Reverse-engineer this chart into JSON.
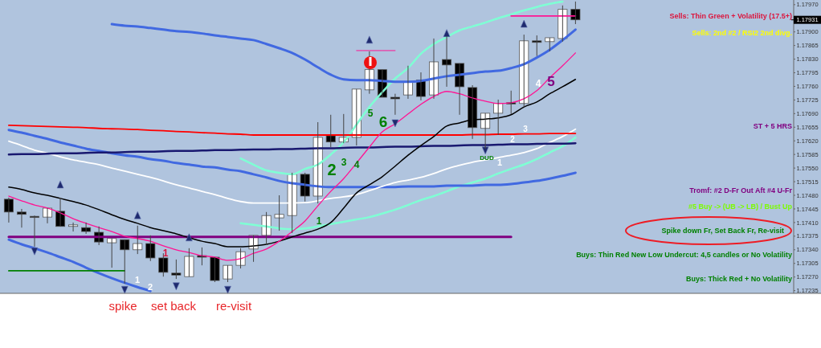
{
  "chart_data": {
    "type": "candlestick",
    "tick_labels": "y",
    "categories": [
      null,
      null,
      null,
      null,
      null,
      null,
      null,
      null,
      null,
      null,
      null,
      null,
      null,
      null,
      null,
      null,
      null,
      null,
      null,
      null,
      null,
      null,
      null,
      null,
      null,
      null,
      null,
      null,
      null,
      null,
      null,
      null,
      null,
      null,
      null,
      null,
      null,
      null,
      null,
      null,
      null,
      null,
      null,
      null,
      null
    ],
    "ohlc": [
      [
        1.1747,
        1.17474,
        1.1741,
        1.17437
      ],
      [
        1.17437,
        1.17445,
        1.17397,
        1.17431
      ],
      [
        1.17426,
        1.17428,
        1.17348,
        1.17424
      ],
      [
        1.17424,
        1.17447,
        1.17408,
        1.17447
      ],
      [
        1.17439,
        1.17474,
        1.174,
        1.174
      ],
      [
        1.174,
        1.1741,
        1.17387,
        1.17404
      ],
      [
        1.17397,
        1.1741,
        1.17381,
        1.17387
      ],
      [
        1.17385,
        1.174,
        1.17352,
        1.1736
      ],
      [
        1.17358,
        1.17369,
        1.17294,
        1.17369
      ],
      [
        1.17366,
        1.17366,
        1.17253,
        1.1734
      ],
      [
        1.1734,
        1.17402,
        1.17329,
        1.17356
      ],
      [
        1.17356,
        1.17377,
        1.17311,
        1.17319
      ],
      [
        1.17319,
        1.17331,
        1.17271,
        1.17282
      ],
      [
        1.1728,
        1.17315,
        1.17265,
        1.17275
      ],
      [
        1.17271,
        1.17344,
        1.17271,
        1.17323
      ],
      [
        1.17325,
        1.17346,
        1.173,
        1.17321
      ],
      [
        1.17321,
        1.17321,
        1.17257,
        1.17261
      ],
      [
        1.17265,
        1.173,
        1.17257,
        1.173
      ],
      [
        1.173,
        1.17344,
        1.17292,
        1.17335
      ],
      [
        1.17342,
        1.17377,
        1.17309,
        1.17377
      ],
      [
        1.17377,
        1.17437,
        1.17352,
        1.17428
      ],
      [
        1.17422,
        1.1748,
        1.17389,
        1.17431
      ],
      [
        1.17428,
        1.17538,
        1.17383,
        1.17534
      ],
      [
        1.17534,
        1.17538,
        1.17464,
        1.17478
      ],
      [
        1.17478,
        1.17668,
        1.17459,
        1.17629
      ],
      [
        1.17633,
        1.17687,
        1.17604,
        1.17617
      ],
      [
        1.17617,
        1.17689,
        1.17614,
        1.17629
      ],
      [
        1.17629,
        1.17753,
        1.17608,
        1.17753
      ],
      [
        1.17751,
        1.1785,
        1.17741,
        1.17803
      ],
      [
        1.17803,
        1.17803,
        1.17732,
        1.17732
      ],
      [
        1.17732,
        1.17741,
        1.17687,
        1.17728
      ],
      [
        1.17738,
        1.17813,
        1.17728,
        1.17772
      ],
      [
        1.17776,
        1.17796,
        1.17724,
        1.17734
      ],
      [
        1.17738,
        1.17883,
        1.17728,
        1.17823
      ],
      [
        1.17829,
        1.17889,
        1.17759,
        1.17815
      ],
      [
        1.17819,
        1.17819,
        1.17687,
        1.17759
      ],
      [
        1.17757,
        1.17763,
        1.17625,
        1.17654
      ],
      [
        1.17652,
        1.17691,
        1.176,
        1.17691
      ],
      [
        1.17691,
        1.17726,
        1.17635,
        1.17716
      ],
      [
        1.17718,
        1.17749,
        1.17689,
        1.17716
      ],
      [
        1.17716,
        1.17893,
        1.17707,
        1.17877
      ],
      [
        1.17877,
        1.17891,
        1.17838,
        1.17873
      ],
      [
        1.17875,
        1.17885,
        1.1785,
        1.17885
      ],
      [
        1.17883,
        1.17968,
        1.17875,
        1.17958
      ],
      [
        1.17958,
        1.17978,
        1.1792,
        1.17931
      ]
    ],
    "series": [
      {
        "type": "line",
        "color": "#7fffd4",
        "values": [
          null,
          null,
          null,
          null,
          null,
          null,
          null,
          null,
          null,
          null,
          null,
          null,
          null,
          null,
          null,
          null,
          null,
          null,
          1.17575,
          1.17559,
          1.17544,
          1.17538,
          1.17534,
          1.17548,
          1.17559,
          1.17585,
          1.17616,
          1.17662,
          1.17707,
          1.17745,
          1.1778,
          1.17807,
          1.17844,
          1.17869,
          1.17887,
          1.17904,
          1.17914,
          1.17924,
          1.17935,
          1.17945,
          1.17955,
          1.17964,
          1.17972,
          1.17978,
          null
        ]
      },
      {
        "type": "line",
        "color": "#7fffd4",
        "values": [
          null,
          null,
          null,
          null,
          null,
          null,
          null,
          null,
          null,
          null,
          null,
          null,
          null,
          null,
          null,
          null,
          null,
          null,
          1.17408,
          1.17404,
          1.174,
          1.17395,
          1.17393,
          1.17395,
          1.174,
          1.17406,
          1.17412,
          1.17418,
          1.17424,
          1.17433,
          1.17443,
          1.17455,
          1.17468,
          1.17478,
          1.1749,
          1.17503,
          1.17513,
          1.17523,
          1.17536,
          1.17548,
          1.17559,
          1.17573,
          1.1759,
          1.17606,
          1.17629
        ]
      },
      {
        "type": "line",
        "color": "#4169e1",
        "values": [
          null,
          null,
          null,
          null,
          null,
          null,
          null,
          null,
          1.1792,
          1.17916,
          1.17914,
          1.1791,
          1.17906,
          1.17902,
          1.179,
          1.17896,
          1.17891,
          1.17887,
          1.17883,
          1.17879,
          1.17869,
          1.17858,
          1.17846,
          1.17829,
          1.17809,
          1.1779,
          1.17778,
          1.17776,
          1.17776,
          1.17774,
          1.17772,
          1.17772,
          1.17774,
          1.1778,
          1.17786,
          1.1779,
          1.17794,
          1.17798,
          1.178,
          1.17807,
          1.17817,
          1.17834,
          1.17854,
          1.17879,
          1.17906
        ]
      },
      {
        "type": "line",
        "color": "#4169e1",
        "values": [
          1.17648,
          1.17641,
          1.17633,
          1.17625,
          1.17616,
          1.17608,
          1.176,
          1.17594,
          1.17588,
          1.17583,
          1.17579,
          1.17573,
          1.17569,
          1.17563,
          1.17559,
          1.17554,
          1.17552,
          1.17546,
          1.17542,
          1.17534,
          1.17526,
          1.17517,
          1.17511,
          1.17507,
          1.17503,
          1.17501,
          1.17501,
          1.17501,
          1.17501,
          1.17501,
          1.17501,
          1.17503,
          1.17503,
          1.17503,
          1.17505,
          1.17505,
          1.17505,
          1.17507,
          1.17507,
          1.17509,
          1.17513,
          1.17517,
          1.17523,
          1.1753,
          1.17538
        ]
      },
      {
        "type": "line",
        "color": "#4169e1",
        "values": [
          1.17366,
          1.17354,
          1.17344,
          1.17333,
          1.17321,
          1.17309,
          1.17294,
          1.1728,
          1.17267,
          1.17255,
          1.17244,
          1.17234,
          null,
          null,
          null,
          null,
          null,
          null,
          null,
          null,
          null,
          null,
          null,
          null,
          null,
          null,
          null,
          null,
          null,
          null,
          null,
          null,
          null,
          null,
          null,
          null,
          null,
          null,
          null,
          null,
          null,
          null,
          null,
          null,
          null
        ]
      },
      {
        "type": "line",
        "color": "#ffffff",
        "values": [
          1.17619,
          1.17608,
          1.17596,
          1.17588,
          1.17579,
          1.17571,
          1.17565,
          1.17559,
          1.1755,
          1.17542,
          1.17534,
          1.17526,
          1.17517,
          1.17507,
          1.17499,
          1.1749,
          1.17482,
          1.17472,
          1.17464,
          1.1746,
          1.1746,
          1.1746,
          1.1746,
          1.17461,
          1.17466,
          1.17472,
          1.17476,
          1.17482,
          1.17492,
          1.17503,
          1.17513,
          1.17519,
          1.17526,
          1.17536,
          1.17548,
          1.17557,
          1.17565,
          1.17571,
          1.17577,
          1.17583,
          1.1759,
          1.176,
          1.17616,
          1.17631,
          1.1765
        ]
      },
      {
        "type": "line",
        "color": "#191970",
        "values": [
          1.17585,
          1.17586,
          1.17586,
          1.17587,
          1.17588,
          1.17588,
          1.17589,
          1.1759,
          1.1759,
          1.17591,
          1.17592,
          1.17592,
          1.17593,
          1.17594,
          1.17594,
          1.17595,
          1.17596,
          1.17596,
          1.17597,
          1.17598,
          1.17598,
          1.17599,
          1.17599,
          1.176,
          1.17601,
          1.17601,
          1.17602,
          1.17603,
          1.17603,
          1.17604,
          1.17605,
          1.17605,
          1.17606,
          1.17607,
          1.17607,
          1.17608,
          1.17609,
          1.17609,
          1.1761,
          1.17611,
          1.17611,
          1.17612,
          1.17613,
          1.17613,
          1.17614
        ]
      },
      {
        "type": "line",
        "color": "#ff0000",
        "values": [
          1.1766,
          1.17659,
          1.17658,
          1.17657,
          1.17656,
          1.17655,
          1.17654,
          1.17652,
          1.17651,
          1.1765,
          1.17649,
          1.17647,
          1.17646,
          1.17644,
          1.17643,
          1.17641,
          1.1764,
          1.17638,
          1.17637,
          1.17635,
          1.17635,
          1.17635,
          1.17635,
          1.17635,
          1.17635,
          1.17635,
          1.17635,
          1.17635,
          1.17635,
          1.17635,
          1.17635,
          1.17635,
          1.17635,
          1.17635,
          1.17635,
          1.17635,
          1.17636,
          1.17636,
          1.17637,
          1.17637,
          1.17638,
          1.17638,
          1.17639,
          1.17639,
          1.17639
        ]
      },
      {
        "type": "line",
        "color": "#800080",
        "values": [
          1.17373,
          1.17373,
          1.17373,
          1.17373,
          1.17373,
          1.17373,
          1.17373,
          1.17373,
          1.17373,
          1.17373,
          1.17373,
          1.17373,
          1.17373,
          1.17373,
          1.17373,
          1.17373,
          1.17373,
          1.17373,
          1.17373,
          1.17373,
          1.17373,
          1.17373,
          1.17373,
          1.17373,
          1.17373,
          1.17373,
          1.17373,
          1.17373,
          1.17373,
          1.17373,
          1.17373,
          1.17373,
          1.17373,
          1.17373,
          1.17373,
          1.17373,
          1.17373,
          1.17373,
          1.17373,
          1.17373,
          null,
          null,
          null,
          null,
          null
        ]
      },
      {
        "type": "line",
        "color": "#008000",
        "values": [
          1.17286,
          1.17286,
          1.17286,
          1.17286,
          1.17286,
          1.17286,
          1.17286,
          1.17286,
          1.17286,
          1.17286,
          null,
          null,
          null,
          null,
          null,
          null,
          null,
          null,
          null,
          null,
          null,
          null,
          null,
          null,
          null,
          null,
          null,
          null,
          null,
          null,
          null,
          null,
          null,
          null,
          null,
          null,
          null,
          null,
          null,
          null,
          null,
          null,
          null,
          null,
          null
        ]
      },
      {
        "type": "line",
        "color": "#ff1493",
        "values": [
          null,
          null,
          null,
          null,
          null,
          null,
          null,
          null,
          null,
          null,
          null,
          null,
          null,
          null,
          null,
          null,
          null,
          null,
          null,
          null,
          null,
          null,
          null,
          null,
          null,
          null,
          null,
          null,
          null,
          null,
          null,
          null,
          null,
          null,
          null,
          null,
          null,
          null,
          null,
          1.17941,
          1.17941,
          1.17941,
          1.17941,
          1.17941,
          1.17941
        ]
      },
      {
        "type": "line",
        "color": "#ff1493",
        "values": [
          null,
          null,
          null,
          null,
          null,
          null,
          null,
          null,
          null,
          null,
          null,
          null,
          null,
          null,
          null,
          null,
          null,
          null,
          null,
          null,
          null,
          null,
          null,
          null,
          null,
          null,
          null,
          1.17852,
          1.17852,
          1.17852,
          1.17852,
          null,
          null,
          null,
          null,
          null,
          null,
          null,
          null,
          null,
          null,
          null,
          null,
          null,
          null
        ]
      },
      {
        "type": "line",
        "color": "#000000",
        "values": [
          1.17501,
          1.17495,
          1.17486,
          1.1748,
          1.17472,
          1.17464,
          1.17455,
          1.17443,
          1.1743,
          1.17418,
          1.17408,
          1.17397,
          1.17389,
          1.17381,
          1.17371,
          1.17362,
          1.17356,
          1.17348,
          1.17348,
          1.1735,
          1.17354,
          1.17362,
          1.17373,
          1.17383,
          1.17393,
          1.1741,
          1.17447,
          1.17486,
          1.17507,
          1.17528,
          1.17555,
          1.17583,
          1.17608,
          1.17631,
          1.17658,
          1.17666,
          1.17674,
          1.17676,
          1.17679,
          1.17687,
          1.17707,
          1.1772,
          1.17741,
          1.17759,
          1.17778
        ]
      },
      {
        "type": "line",
        "color": "#ff1493",
        "values": [
          1.17478,
          1.17466,
          1.17455,
          1.17447,
          1.17435,
          1.1742,
          1.17408,
          1.17397,
          1.17387,
          1.17375,
          1.17369,
          1.17362,
          1.1735,
          1.1734,
          1.17333,
          1.17325,
          1.17321,
          1.17313,
          1.17317,
          1.17331,
          1.17342,
          1.17362,
          1.17387,
          1.17414,
          1.17453,
          1.1749,
          1.17523,
          1.17563,
          1.17604,
          1.17643,
          1.17664,
          1.17689,
          1.17714,
          1.17734,
          1.17747,
          1.17741,
          1.1773,
          1.17722,
          1.17716,
          1.17718,
          1.17728,
          1.17749,
          1.17782,
          1.17813,
          1.17846
        ]
      },
      {
        "type": "scatter",
        "color": "#1e2a6e",
        "marker": "triangle",
        "values": [
          null,
          null,
          1.17337,
          null,
          1.17507,
          null,
          null,
          null,
          null,
          1.17238,
          1.17428,
          null,
          null,
          1.17247,
          1.17371,
          null,
          null,
          1.17238,
          null,
          null,
          null,
          null,
          null,
          null,
          null,
          null,
          null,
          null,
          1.17879,
          null,
          1.17666,
          null,
          null,
          null,
          1.17896,
          null,
          null,
          1.17596,
          null,
          null,
          1.1792,
          null,
          null,
          null,
          null
        ]
      }
    ],
    "ylim": [
      1.17228,
      1.17982
    ],
    "yticks": [
      {
        "value": 1.1797,
        "label": "1.17970"
      },
      {
        "value": 1.179,
        "label": "1.17900"
      },
      {
        "value": 1.17865,
        "label": "1.17865"
      },
      {
        "value": 1.1783,
        "label": "1.17830"
      },
      {
        "value": 1.17795,
        "label": "1.17795"
      },
      {
        "value": 1.1776,
        "label": "1.17760"
      },
      {
        "value": 1.17725,
        "label": "1.17725"
      },
      {
        "value": 1.1769,
        "label": "1.17690"
      },
      {
        "value": 1.17655,
        "label": "1.17655"
      },
      {
        "value": 1.1762,
        "label": "1.17620"
      },
      {
        "value": 1.17585,
        "label": "1.17585"
      },
      {
        "value": 1.1755,
        "label": "1.17550"
      },
      {
        "value": 1.17515,
        "label": "1.17515"
      },
      {
        "value": 1.1748,
        "label": "1.17480"
      },
      {
        "value": 1.17445,
        "label": "1.17445"
      },
      {
        "value": 1.1741,
        "label": "1.17410"
      },
      {
        "value": 1.17375,
        "label": "1.17375"
      },
      {
        "value": 1.1734,
        "label": "1.17340"
      },
      {
        "value": 1.17305,
        "label": "1.17305"
      },
      {
        "value": 1.1727,
        "label": "1.17270"
      },
      {
        "value": 1.17235,
        "label": "1.17235"
      }
    ],
    "ref_lines": [
      {
        "axis": "y",
        "value": 1.17931,
        "label": "1.17931"
      }
    ],
    "annotations": [
      "Sells: Thin Green + Volatility (17.5+)",
      "Sells: 2nd #2 / RSI2 2nd divg.",
      "ST + 5 HRS",
      "Tromf: #2 D-Fr Out Aft #4 U-Fr",
      "#5 Buy -> (UB -> LB) / Bust Up",
      "Spike down Fr, Set Back Fr, Re-visit",
      "Buys: Thin Red New Low Undercut: 4,5 candles or No Volatility",
      "Buys: Thick Red + No Volatility",
      "spike",
      "set back",
      "re-visit",
      "1",
      "1",
      "2",
      "1",
      "2",
      "3",
      "4",
      "5",
      "6",
      "DUD",
      "1",
      "2",
      "3",
      "4",
      "5"
    ]
  }
}
